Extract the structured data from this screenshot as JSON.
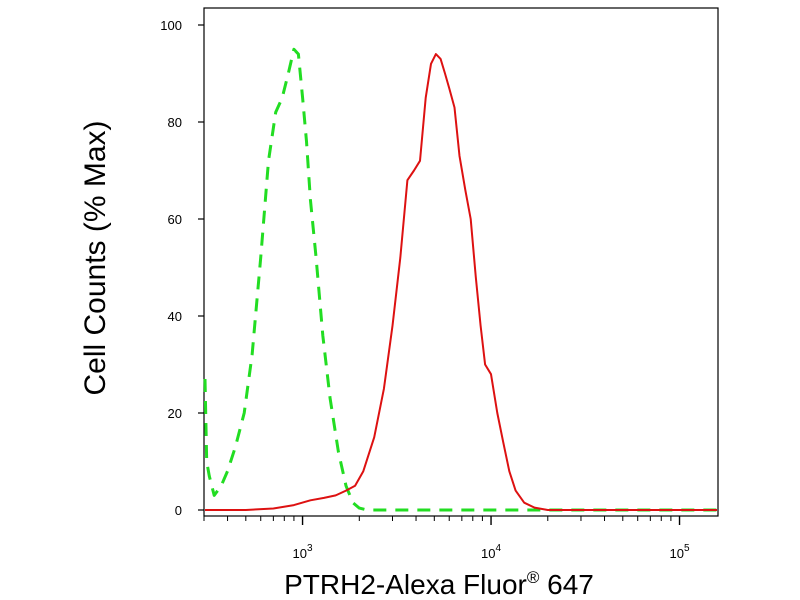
{
  "chart_data": {
    "type": "line",
    "xlabel": "PTRH2-Alexa Fluor",
    "xlabel_sup": "®",
    "xlabel_tail": " 647",
    "ylabel": "Cell Counts (% Max)",
    "x_scale": "log",
    "xlim": [
      300,
      160000
    ],
    "ylim": [
      0,
      100
    ],
    "y_ticks": [
      {
        "value": 0,
        "label": "0"
      },
      {
        "value": 20,
        "label": "20"
      },
      {
        "value": 40,
        "label": "40"
      },
      {
        "value": 60,
        "label": "60"
      },
      {
        "value": 80,
        "label": "80"
      },
      {
        "value": 100,
        "label": "100"
      }
    ],
    "x_ticks": [
      {
        "value": 1000,
        "base": "10",
        "exp": "3"
      },
      {
        "value": 10000,
        "base": "10",
        "exp": "4"
      },
      {
        "value": 100000,
        "base": "10",
        "exp": "5"
      }
    ],
    "grid": false,
    "legend": "none",
    "series": [
      {
        "color": "#22dd22",
        "style": "dashed",
        "x": [
          300,
          310,
          320,
          340,
          370,
          400,
          440,
          490,
          540,
          600,
          660,
          720,
          780,
          840,
          900,
          950,
          1000,
          1050,
          1100,
          1180,
          1280,
          1400,
          1550,
          1700,
          1850,
          2000,
          2200,
          2500,
          3000,
          4000,
          6000,
          10000,
          20000,
          50000,
          100000,
          160000
        ],
        "y": [
          27,
          10,
          7,
          3,
          5,
          8,
          13,
          20,
          32,
          52,
          72,
          82,
          85,
          90,
          95,
          94,
          85,
          76,
          64,
          52,
          36,
          23,
          12,
          5,
          1.5,
          0.4,
          0,
          0,
          0,
          0,
          0,
          0,
          0,
          0,
          0,
          0
        ]
      },
      {
        "color": "#dd1111",
        "style": "solid",
        "x": [
          300,
          500,
          700,
          900,
          1100,
          1300,
          1500,
          1700,
          1900,
          2100,
          2400,
          2700,
          3000,
          3300,
          3600,
          3900,
          4200,
          4500,
          4800,
          5100,
          5400,
          5700,
          6000,
          6400,
          6800,
          7300,
          7800,
          8300,
          8800,
          9300,
          10000,
          10800,
          11600,
          12500,
          13500,
          15000,
          17000,
          20000,
          30000,
          60000,
          160000
        ],
        "y": [
          0,
          0,
          0.3,
          1,
          2,
          2.5,
          3,
          4,
          5,
          8,
          15,
          25,
          38,
          52,
          68,
          70,
          72,
          85,
          92,
          94,
          93,
          90,
          87,
          83,
          73,
          66,
          60,
          48,
          38,
          30,
          28,
          20,
          14,
          8,
          4,
          1.5,
          0.5,
          0,
          0,
          0,
          0
        ]
      }
    ]
  }
}
